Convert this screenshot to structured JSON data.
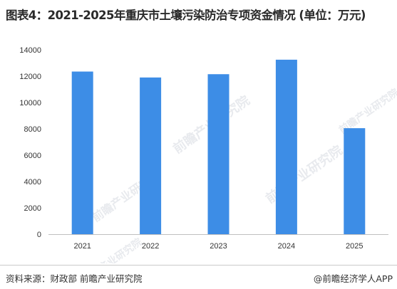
{
  "title": "图表4：2021-2025年重庆市土壤污染防治专项资金情况 (单位：万元)",
  "source": "资料来源：财政部 前瞻产业研究院",
  "brand": "@前瞻经济学人APP",
  "watermark": "前瞻产业研究院",
  "colors": {
    "bar": "#3d8de6",
    "axis": "#c0c0c0"
  },
  "chart_data": {
    "type": "bar",
    "categories": [
      "2021",
      "2022",
      "2023",
      "2024",
      "2025"
    ],
    "values": [
      12350,
      11900,
      12150,
      13250,
      8050
    ],
    "ylim": [
      0,
      14000
    ],
    "yticks": [
      0,
      2000,
      4000,
      6000,
      8000,
      10000,
      12000,
      14000
    ],
    "grid": false
  }
}
